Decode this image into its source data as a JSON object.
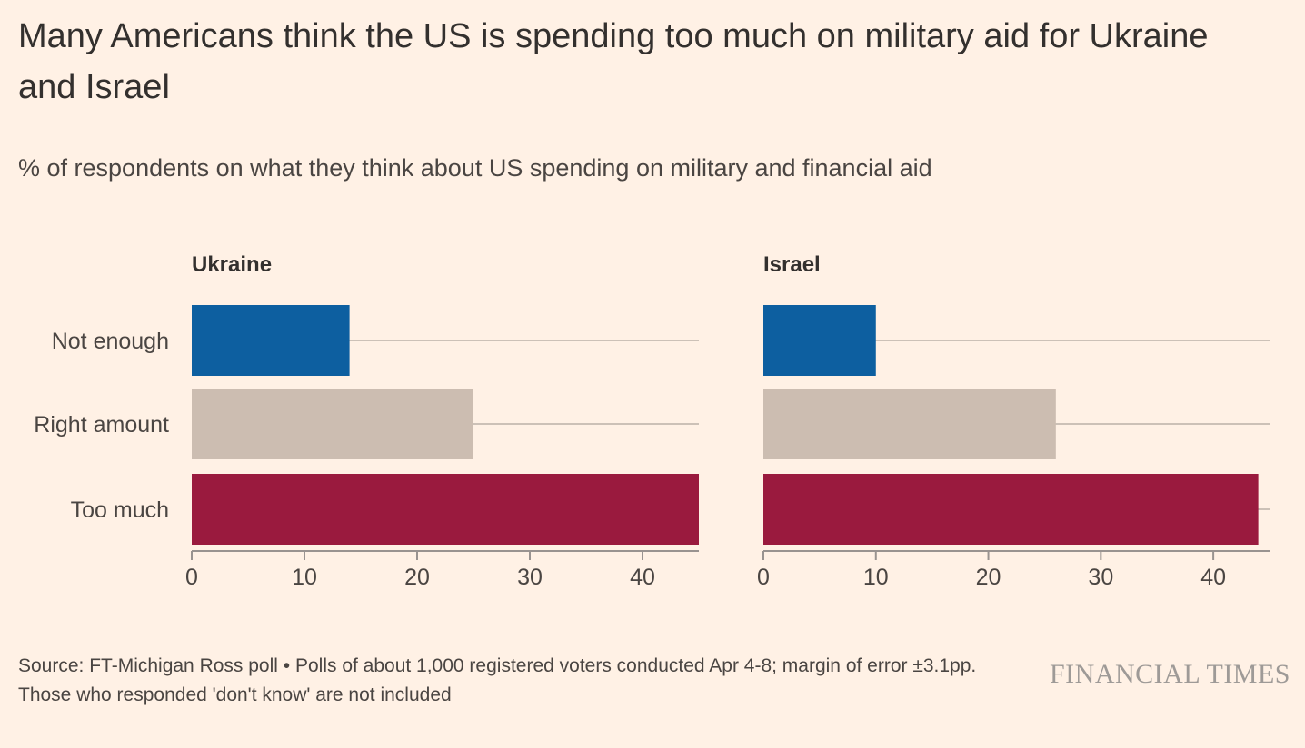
{
  "title": "Many Americans think the US is spending too much on military aid for Ukraine and Israel",
  "subtitle": "% of respondents on what they think about US spending on military and financial aid",
  "source": "Source: FT-Michigan Ross poll • Polls of about 1,000 registered voters conducted Apr 4-8; margin of error ±3.1pp. Those who responded 'don't know' are not included",
  "brand": "FINANCIAL TIMES",
  "colors": {
    "background": "#fff1e5",
    "not_enough": "#0d5fa0",
    "right_amount": "#ccbdb1",
    "too_much": "#9a1a3e",
    "gridline": "#ccc1b7",
    "axis": "#999390"
  },
  "chart_data": [
    {
      "type": "bar",
      "orientation": "horizontal",
      "title": "Ukraine",
      "categories": [
        "Not enough",
        "Right amount",
        "Too much"
      ],
      "values": [
        14,
        25,
        45
      ],
      "xlim": [
        0,
        45
      ],
      "xticks": [
        0,
        10,
        20,
        30,
        40
      ],
      "grid": true
    },
    {
      "type": "bar",
      "orientation": "horizontal",
      "title": "Israel",
      "categories": [
        "Not enough",
        "Right amount",
        "Too much"
      ],
      "values": [
        10,
        26,
        44
      ],
      "xlim": [
        0,
        45
      ],
      "xticks": [
        0,
        10,
        20,
        30,
        40
      ],
      "grid": true
    }
  ]
}
